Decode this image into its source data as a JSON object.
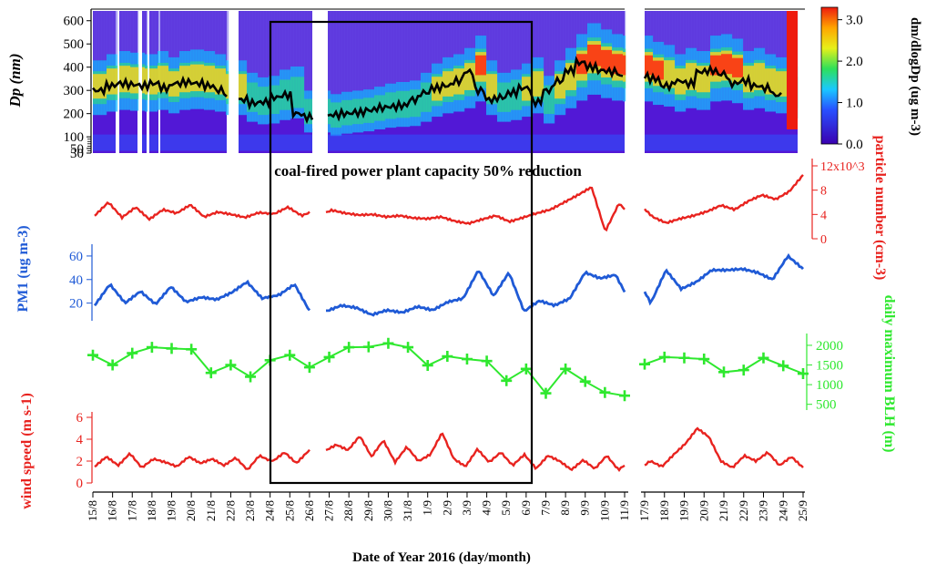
{
  "chart_data": {
    "type": "line",
    "xlabel": "Date of Year 2016 (day/month)",
    "x_tick_labels": [
      "15/8",
      "16/8",
      "17/8",
      "18/8",
      "19/8",
      "20/8",
      "21/8",
      "22/8",
      "23/8",
      "24/8",
      "25/8",
      "26/8",
      "27/8",
      "28/8",
      "29/8",
      "30/8",
      "31/8",
      "1/9",
      "2/9",
      "3/9",
      "4/9",
      "5/9",
      "6/9",
      "7/9",
      "8/9",
      "9/9",
      "10/9",
      "11/9",
      "17/9",
      "18/9",
      "19/9",
      "20/9",
      "21/9",
      "22/9",
      "23/9",
      "24/9",
      "25/9"
    ],
    "annotation": "coal-fired power plant capacity 50% reduction",
    "highlight_period": [
      "24/8",
      "6/9"
    ],
    "panels": [
      {
        "name": "size-distribution",
        "type": "heatmap",
        "ylabel": "Dp (nm)",
        "y_ticks": [
          "600",
          "500",
          "400",
          "300",
          "200",
          "100",
          "50",
          "30"
        ],
        "colorbar_label": "dm/dlogDp (ug m-3)",
        "colorbar_ticks": [
          "3.0",
          "2.0",
          "1.0",
          "0.0"
        ],
        "colorbar_range": [
          0,
          3.3
        ],
        "mode_diameter_nm": [
          300,
          320,
          330,
          325,
          320,
          330,
          310,
          330,
          335,
          330,
          320,
          300,
          260,
          245,
          250,
          270,
          280,
          200,
          185,
          195,
          200,
          205,
          215,
          225,
          230,
          235,
          260,
          290,
          310,
          320,
          340,
          380,
          300,
          260,
          270,
          290,
          310,
          250,
          300,
          340,
          385,
          420,
          400,
          385,
          380,
          360,
          350,
          320,
          340,
          330,
          380,
          385,
          370,
          330,
          340,
          320,
          310,
          280
        ]
      },
      {
        "name": "particle-number",
        "ylabel": "particle number (cm-3)",
        "y_ticks": [
          "12x10^3",
          "8",
          "4",
          "0"
        ],
        "ylim": [
          0,
          12000
        ],
        "color": "#e8231f",
        "values": [
          3800,
          6000,
          3500,
          5200,
          3200,
          4800,
          4200,
          5600,
          3600,
          4400,
          4000,
          3500,
          4300,
          4100,
          5200,
          3800,
          4700,
          4200,
          3900,
          4000,
          3600,
          3800,
          3400,
          3300,
          3600,
          2900,
          2500,
          3200,
          3800,
          2800,
          3500,
          4200,
          4800,
          6000,
          7200,
          8500,
          1200,
          5800,
          3600,
          2600,
          3300,
          3800,
          4500,
          5500,
          4800,
          6200,
          7200,
          6500,
          7800,
          10500
        ]
      },
      {
        "name": "pm1",
        "ylabel": "PM1 (ug m-3)",
        "y_ticks": [
          "60",
          "40",
          "20"
        ],
        "ylim": [
          5,
          70
        ],
        "color": "#1f5ad6",
        "values": [
          18,
          36,
          20,
          30,
          19,
          34,
          21,
          25,
          23,
          29,
          38,
          24,
          27,
          36,
          13,
          18,
          16,
          10,
          14,
          12,
          17,
          14,
          21,
          24,
          48,
          26,
          46,
          13,
          22,
          18,
          24,
          46,
          41,
          44,
          20,
          48,
          32,
          38,
          48,
          48,
          49,
          46,
          40,
          60,
          49
        ]
      },
      {
        "name": "blh",
        "ylabel": "daily maximum BLH (m)",
        "y_ticks": [
          "2000",
          "1500",
          "1000",
          "500"
        ],
        "ylim": [
          400,
          2300
        ],
        "color": "#2ee82e",
        "points": [
          {
            "x": "15/8",
            "v": 1750
          },
          {
            "x": "16/8",
            "v": 1500
          },
          {
            "x": "17/8",
            "v": 1800
          },
          {
            "x": "18/8",
            "v": 1950
          },
          {
            "x": "19/8",
            "v": 1920
          },
          {
            "x": "20/8",
            "v": 1900
          },
          {
            "x": "21/8",
            "v": 1300
          },
          {
            "x": "22/8",
            "v": 1500
          },
          {
            "x": "23/8",
            "v": 1200
          },
          {
            "x": "24/8",
            "v": 1620
          },
          {
            "x": "25/8",
            "v": 1750
          },
          {
            "x": "26/8",
            "v": 1440
          },
          {
            "x": "27/8",
            "v": 1700
          },
          {
            "x": "28/8",
            "v": 1950
          },
          {
            "x": "29/8",
            "v": 1960
          },
          {
            "x": "30/8",
            "v": 2050
          },
          {
            "x": "31/8",
            "v": 1950
          },
          {
            "x": "1/9",
            "v": 1490
          },
          {
            "x": "2/9",
            "v": 1720
          },
          {
            "x": "3/9",
            "v": 1650
          },
          {
            "x": "4/9",
            "v": 1600
          },
          {
            "x": "5/9",
            "v": 1100
          },
          {
            "x": "6/9",
            "v": 1400
          },
          {
            "x": "7/9",
            "v": 780
          },
          {
            "x": "8/9",
            "v": 1400
          },
          {
            "x": "9/9",
            "v": 1080
          },
          {
            "x": "10/9",
            "v": 800
          },
          {
            "x": "11/9",
            "v": 720
          },
          {
            "x": "17/9",
            "v": 1520
          },
          {
            "x": "18/9",
            "v": 1700
          },
          {
            "x": "19/9",
            "v": 1680
          },
          {
            "x": "20/9",
            "v": 1650
          },
          {
            "x": "21/9",
            "v": 1320
          },
          {
            "x": "22/9",
            "v": 1370
          },
          {
            "x": "23/9",
            "v": 1680
          },
          {
            "x": "24/9",
            "v": 1480
          },
          {
            "x": "25/9",
            "v": 1280
          }
        ]
      },
      {
        "name": "wind-speed",
        "ylabel": "wind speed (m s-1)",
        "y_ticks": [
          "6",
          "4",
          "2",
          "0"
        ],
        "ylim": [
          0,
          6.5
        ],
        "color": "#e8231f",
        "values": [
          1.5,
          2.4,
          1.6,
          2.7,
          1.4,
          2.2,
          1.9,
          1.5,
          2.4,
          1.8,
          2.2,
          1.6,
          2.3,
          1.2,
          2.5,
          2.0,
          2.8,
          1.8,
          2.9,
          3.5,
          3.0,
          4.3,
          2.4,
          3.9,
          1.9,
          3.3,
          2.0,
          2.6,
          4.6,
          2.2,
          1.5,
          3.1,
          1.9,
          2.8,
          1.6,
          2.6,
          1.3,
          2.5,
          2.0,
          1.2,
          2.1,
          1.3,
          2.5,
          1.2,
          2.0,
          1.5,
          2.6,
          3.6,
          5.0,
          4.2,
          2.0,
          1.4,
          2.5,
          2.0,
          2.8,
          1.6,
          2.4,
          1.4
        ]
      }
    ]
  }
}
